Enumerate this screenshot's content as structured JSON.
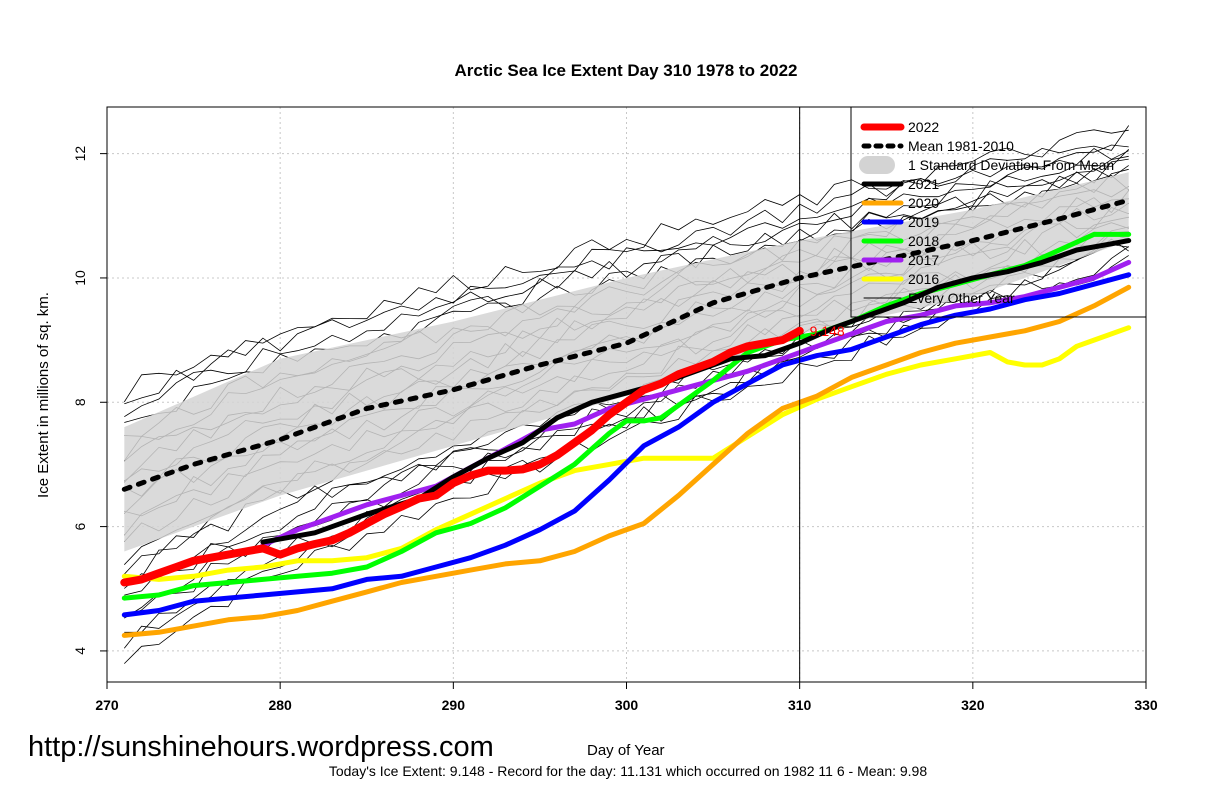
{
  "chart_data": {
    "type": "line",
    "title": "Arctic Sea Ice Extent Day 310 1978 to 2022",
    "xlabel": "Day of Year",
    "ylabel": "Ice Extent in millions of sq. km.",
    "xlim": [
      270,
      330
    ],
    "ylim": [
      3.5,
      12.75
    ],
    "x_ticks": [
      "270",
      "280",
      "290",
      "300",
      "310",
      "320",
      "330"
    ],
    "y_ticks": [
      "4",
      "6",
      "8",
      "10",
      "12"
    ],
    "grid": true,
    "legend_position": "top-right",
    "current_day": 310,
    "current_value": 9.148,
    "current_value_label": "9.148",
    "band": {
      "name": "1 Standard Deviation From Mean",
      "color": "#d3d3d3",
      "x": [
        271,
        280,
        290,
        300,
        310,
        320,
        329
      ],
      "upper": [
        7.6,
        8.7,
        9.3,
        10.0,
        10.6,
        11.1,
        11.7
      ],
      "lower": [
        5.6,
        6.5,
        7.3,
        8.1,
        9.1,
        9.7,
        10.6
      ]
    },
    "series": [
      {
        "name": "2022",
        "color": "#ff0000",
        "width": 8,
        "x": [
          271,
          272,
          273,
          274,
          275,
          276,
          277,
          278,
          279,
          280,
          281,
          282,
          283,
          284,
          285,
          286,
          287,
          288,
          289,
          290,
          291,
          292,
          293,
          294,
          295,
          296,
          297,
          298,
          299,
          300,
          301,
          302,
          303,
          304,
          305,
          306,
          307,
          308,
          309,
          310
        ],
        "y": [
          5.1,
          5.15,
          5.25,
          5.35,
          5.45,
          5.5,
          5.55,
          5.6,
          5.65,
          5.55,
          5.65,
          5.72,
          5.78,
          5.9,
          6.05,
          6.2,
          6.32,
          6.45,
          6.5,
          6.7,
          6.82,
          6.9,
          6.9,
          6.92,
          7.0,
          7.15,
          7.35,
          7.55,
          7.8,
          8.0,
          8.2,
          8.3,
          8.45,
          8.55,
          8.65,
          8.8,
          8.9,
          8.95,
          9.0,
          9.148
        ]
      },
      {
        "name": "Mean 1981-2010",
        "color": "#000000",
        "width": 5,
        "dash": "6,9",
        "x": [
          271,
          275,
          280,
          285,
          290,
          295,
          300,
          305,
          310,
          315,
          320,
          325,
          329
        ],
        "y": [
          6.6,
          7.0,
          7.4,
          7.9,
          8.2,
          8.6,
          8.95,
          9.6,
          10.0,
          10.3,
          10.6,
          10.95,
          11.25
        ]
      },
      {
        "name": "2021",
        "color": "#000000",
        "width": 5,
        "x": [
          279,
          282,
          285,
          288,
          290,
          292,
          294,
          296,
          298,
          300,
          302,
          304,
          306,
          308,
          310,
          312,
          314,
          316,
          318,
          320,
          322,
          324,
          326,
          328,
          329
        ],
        "y": [
          5.75,
          5.9,
          6.2,
          6.45,
          6.8,
          7.1,
          7.35,
          7.75,
          8.0,
          8.15,
          8.3,
          8.5,
          8.7,
          8.75,
          8.95,
          9.2,
          9.4,
          9.6,
          9.85,
          10.0,
          10.1,
          10.25,
          10.45,
          10.55,
          10.6
        ]
      },
      {
        "name": "2020",
        "color": "#ffa500",
        "width": 5,
        "x": [
          271,
          273,
          275,
          277,
          279,
          281,
          283,
          285,
          287,
          289,
          291,
          293,
          295,
          297,
          299,
          301,
          303,
          305,
          307,
          309,
          311,
          313,
          315,
          317,
          319,
          321,
          323,
          325,
          327,
          329
        ],
        "y": [
          4.25,
          4.3,
          4.4,
          4.5,
          4.55,
          4.65,
          4.8,
          4.95,
          5.1,
          5.2,
          5.3,
          5.4,
          5.45,
          5.6,
          5.85,
          6.05,
          6.5,
          7.0,
          7.5,
          7.9,
          8.1,
          8.4,
          8.6,
          8.8,
          8.95,
          9.05,
          9.15,
          9.3,
          9.55,
          9.85
        ]
      },
      {
        "name": "2019",
        "color": "#0000ff",
        "width": 5,
        "x": [
          271,
          273,
          275,
          277,
          279,
          281,
          283,
          285,
          287,
          289,
          291,
          293,
          295,
          297,
          299,
          301,
          303,
          305,
          307,
          309,
          311,
          313,
          315,
          317,
          319,
          321,
          323,
          325,
          327,
          329
        ],
        "y": [
          4.58,
          4.65,
          4.8,
          4.85,
          4.9,
          4.95,
          5.0,
          5.15,
          5.2,
          5.35,
          5.5,
          5.7,
          5.95,
          6.25,
          6.75,
          7.3,
          7.6,
          8.0,
          8.3,
          8.6,
          8.75,
          8.85,
          9.05,
          9.25,
          9.4,
          9.5,
          9.65,
          9.75,
          9.9,
          10.05
        ]
      },
      {
        "name": "2018",
        "color": "#00ff00",
        "width": 5,
        "x": [
          271,
          273,
          275,
          277,
          279,
          281,
          283,
          285,
          287,
          289,
          291,
          293,
          295,
          297,
          299,
          300,
          301,
          302,
          303,
          305,
          307,
          309,
          311,
          313,
          315,
          317,
          319,
          321,
          323,
          325,
          327,
          329
        ],
        "y": [
          4.85,
          4.9,
          5.05,
          5.1,
          5.15,
          5.2,
          5.25,
          5.35,
          5.6,
          5.9,
          6.05,
          6.3,
          6.65,
          7.0,
          7.5,
          7.7,
          7.7,
          7.75,
          7.95,
          8.35,
          8.8,
          9.0,
          9.1,
          9.3,
          9.55,
          9.75,
          9.9,
          10.05,
          10.2,
          10.45,
          10.7,
          10.7
        ]
      },
      {
        "name": "2017",
        "color": "#a020f0",
        "width": 5,
        "x": [
          279,
          281,
          283,
          285,
          287,
          289,
          291,
          293,
          295,
          297,
          299,
          301,
          303,
          305,
          307,
          309,
          311,
          313,
          315,
          317,
          319,
          321,
          323,
          325,
          327,
          329
        ],
        "y": [
          5.7,
          5.95,
          6.15,
          6.35,
          6.5,
          6.65,
          6.95,
          7.25,
          7.55,
          7.65,
          7.9,
          8.05,
          8.2,
          8.35,
          8.5,
          8.7,
          8.9,
          9.1,
          9.3,
          9.4,
          9.55,
          9.6,
          9.7,
          9.85,
          10.0,
          10.25
        ]
      },
      {
        "name": "2016",
        "color": "#ffff00",
        "width": 5,
        "x": [
          271,
          273,
          275,
          277,
          279,
          281,
          283,
          285,
          287,
          289,
          291,
          293,
          295,
          297,
          299,
          301,
          303,
          305,
          307,
          309,
          311,
          313,
          315,
          317,
          319,
          321,
          322,
          323,
          324,
          325,
          326,
          327,
          329
        ],
        "y": [
          5.2,
          5.15,
          5.2,
          5.3,
          5.35,
          5.45,
          5.45,
          5.5,
          5.65,
          5.95,
          6.2,
          6.45,
          6.7,
          6.9,
          7.0,
          7.1,
          7.1,
          7.1,
          7.45,
          7.8,
          8.05,
          8.25,
          8.45,
          8.6,
          8.7,
          8.8,
          8.65,
          8.6,
          8.6,
          8.7,
          8.9,
          9.0,
          9.2
        ]
      },
      {
        "name": "Every Other Year",
        "color": "#000000",
        "width": 1
      }
    ]
  },
  "footer_text": "Today's Ice Extent: 9.148  - Record for the day: 11.131 which occurred on 1982 11 6  - Mean: 9.98",
  "watermark": "http://sunshinehours.wordpress.com"
}
